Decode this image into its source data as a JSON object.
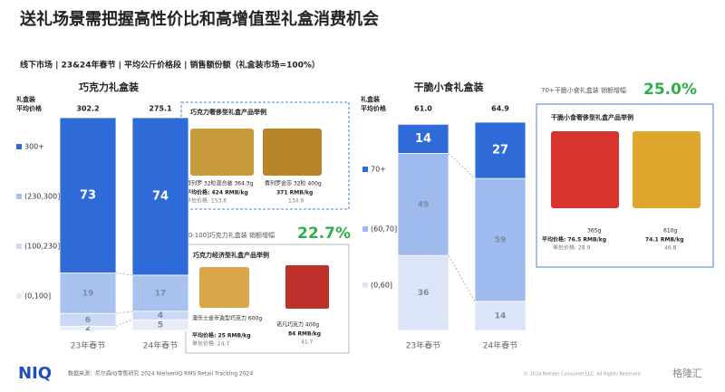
{
  "title": "送礼场景需把握高性价比和高增值型礼盒消费机会",
  "subtitle": "线下市场 | 23&24年春节 | 平均公斤价格段 | 销售额份额（礼盒装市场=100%）",
  "chart_data": [
    {
      "type": "bar",
      "stacked": true,
      "title": "巧克力礼盒装",
      "y_label": [
        "礼盒装",
        "平均价格"
      ],
      "categories": [
        "23年春节",
        "24年春节"
      ],
      "avg_price_labels": [
        "302.2",
        "275.1"
      ],
      "ylim": [
        0,
        100
      ],
      "series": [
        {
          "name": "(0,100]",
          "color": "#e6ecf8",
          "label_color": "#7d8aa3",
          "values": [
            2,
            5
          ]
        },
        {
          "name": "(100,230]",
          "color": "#c9d8f4",
          "label_color": "#7d8aa3",
          "values": [
            6,
            4
          ]
        },
        {
          "name": "(230,300]",
          "color": "#a9c1ee",
          "label_color": "#7d8aa3",
          "values": [
            19,
            17
          ]
        },
        {
          "name": "300+",
          "color": "#2f6bd8",
          "label_color": "#ffffff",
          "values": [
            73,
            74
          ]
        }
      ]
    },
    {
      "type": "bar",
      "stacked": true,
      "title": "干脆小食礼盒装",
      "y_label": [
        "礼盒装",
        "平均价格"
      ],
      "categories": [
        "23年春节",
        "24年春节"
      ],
      "avg_price_labels": [
        "61.0",
        "64.9"
      ],
      "ylim": [
        0,
        100
      ],
      "series": [
        {
          "name": "(0,60]",
          "color": "#dbe5f7",
          "label_color": "#7d8aa3",
          "values": [
            36,
            14
          ]
        },
        {
          "name": "(60,70]",
          "color": "#9fbaec",
          "label_color": "#7d8aa3",
          "values": [
            49,
            59
          ]
        },
        {
          "name": "70+",
          "color": "#2f6bd8",
          "label_color": "#ffffff",
          "values": [
            14,
            27
          ]
        }
      ]
    }
  ],
  "annotations": [
    {
      "text": "(0-100]巧克力礼盒装 销额增幅",
      "growth": "22.7%"
    },
    {
      "text": "70+干脆小食礼盒装 销额增幅",
      "growth": "25.0%"
    }
  ],
  "boxes": [
    {
      "title": "巧克力奢侈型礼盒产品举例",
      "products": [
        [
          "費列罗 32粒混合装 364.3g",
          "平均价格: 424 RMB/kg",
          "单包价格: 153.6"
        ],
        [
          "費列罗金莎 32粒 400g",
          "371 RMB/kg",
          "134.9"
        ]
      ]
    },
    {
      "title": "巧克力经济型礼盒产品举例",
      "products": [
        [
          "澳乐士金币造型巧克力 600g",
          "平均价格: 25 RMB/kg",
          "单包价格: 24.7"
        ],
        [
          "诺凡巧克力 400g",
          "84 RMB/kg",
          "41.7"
        ]
      ]
    },
    {
      "title": "干脆小食奢侈型礼盒产品举例",
      "products": [
        [
          "365g",
          "平均价格: 76.5 RMB/kg",
          "单包价格: 28.9"
        ],
        [
          "610g",
          "74.1 RMB/kg",
          "46.8"
        ]
      ]
    }
  ],
  "footer": {
    "logo": "NIQ",
    "source": "数据来源：尼尔森IQ零售研究 2024 NielsenIQ RMS Retail Tracking 2024",
    "copyright": "© 2024 Nielsen Consumer LLC. All Rights Reserved",
    "watermark": "格隆汇"
  }
}
